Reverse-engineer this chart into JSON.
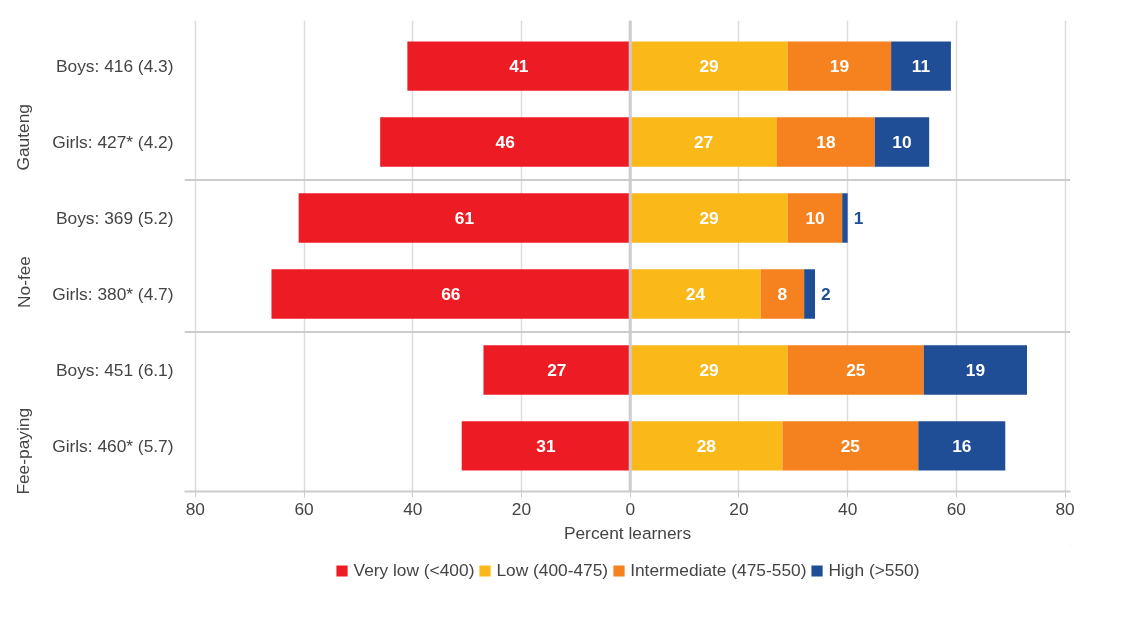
{
  "chart_data": {
    "type": "bar",
    "orientation": "horizontal",
    "categories": [
      "Boys: 416 (4.3)",
      "Girls: 427* (4.2)",
      "Boys: 369 (5.2)",
      "Girls: 380* (4.7)",
      "Boys: 451 (6.1)",
      "Girls: 460* (5.7)"
    ],
    "annotations": [
      "Gauteng",
      "No-fee",
      "Fee-paying"
    ],
    "xlabel": "Percent learners",
    "xlim": [
      -82,
      81
    ],
    "xticks": [
      {
        "value": -80,
        "label": "80"
      },
      {
        "value": -60,
        "label": "60"
      },
      {
        "value": -40,
        "label": "40"
      },
      {
        "value": -20,
        "label": "20"
      },
      0,
      20,
      40,
      60,
      80
    ],
    "grid": "x",
    "legend": "bottom",
    "series": [
      {
        "name": "Very low (<400)",
        "color": "#ed1c24",
        "values": [
          41,
          46,
          61,
          66,
          27,
          31
        ],
        "base": [
          -41,
          -46,
          -61,
          -66,
          -27,
          -31
        ],
        "value_labels": [
          "41",
          "46",
          "61",
          "66",
          "27",
          "31"
        ]
      },
      {
        "name": "Low (400-475)",
        "color": "#fbb919",
        "values": [
          29,
          27,
          29,
          24,
          29,
          28
        ],
        "base": [
          0,
          0,
          0,
          0,
          0,
          0
        ],
        "value_labels": [
          "29",
          "27",
          "29",
          "24",
          "29",
          "28"
        ]
      },
      {
        "name": "Intermediate (475-550)",
        "color": "#f5821f",
        "values": [
          19,
          18,
          10,
          8,
          25,
          25
        ],
        "base": [
          29,
          27,
          29,
          24,
          29,
          28
        ],
        "value_labels": [
          "19",
          "18",
          "10",
          "8",
          "25",
          "25"
        ]
      },
      {
        "name": "High (>550)",
        "color": "#1f4e96",
        "values": [
          11,
          10,
          1,
          2,
          19,
          16
        ],
        "base": [
          48,
          45,
          39,
          32,
          54,
          53
        ],
        "value_labels": [
          "11",
          "10",
          "1",
          "2",
          "19",
          "16"
        ]
      }
    ]
  }
}
